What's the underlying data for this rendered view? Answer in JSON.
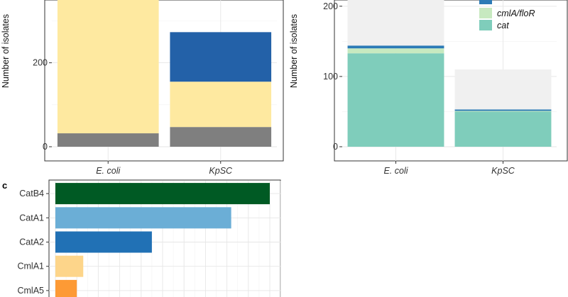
{
  "chart_data": [
    {
      "type": "bar",
      "stacked": true,
      "ylabel": "Number of isolates",
      "categories": [
        "E. coli",
        "KpSC"
      ],
      "ylim": [
        0,
        380
      ],
      "yticks": [
        0,
        200
      ],
      "grid": true,
      "series": [
        {
          "color": "#7f7f7f",
          "values": [
            32,
            47
          ]
        },
        {
          "color": "#fee9a0",
          "values": [
            346,
            108
          ]
        },
        {
          "color": "#2361a8",
          "values": [
            0,
            118
          ]
        }
      ]
    },
    {
      "type": "bar",
      "stacked": true,
      "ylabel": "Number of isolates",
      "categories": [
        "E. coli",
        "KpSC"
      ],
      "ylim": [
        0,
        226
      ],
      "yticks": [
        0,
        100,
        200
      ],
      "grid": true,
      "legend_position": "top-right",
      "series": [
        {
          "name": "cat",
          "color": "#7fcdbb",
          "values": [
            133,
            50
          ]
        },
        {
          "name": "cmlA/floR",
          "color": "#c7e9c0",
          "values": [
            7,
            1
          ]
        },
        {
          "name": "",
          "color": "#2c7bb6",
          "values": [
            4,
            2
          ]
        },
        {
          "color": "#f0f0f0",
          "values": [
            86,
            57
          ]
        }
      ]
    },
    {
      "type": "bar",
      "orientation": "horizontal",
      "panel_label": "c",
      "categories": [
        "CatB4",
        "CatA1",
        "CatA2",
        "CmlA1",
        "CmlA5"
      ],
      "values": [
        100,
        82,
        45,
        13,
        10
      ],
      "colors": [
        "#005a24",
        "#6baed6",
        "#2171b5",
        "#fdd58a",
        "#fd9a35"
      ],
      "xlim": [
        0,
        106
      ],
      "grid": true
    }
  ]
}
